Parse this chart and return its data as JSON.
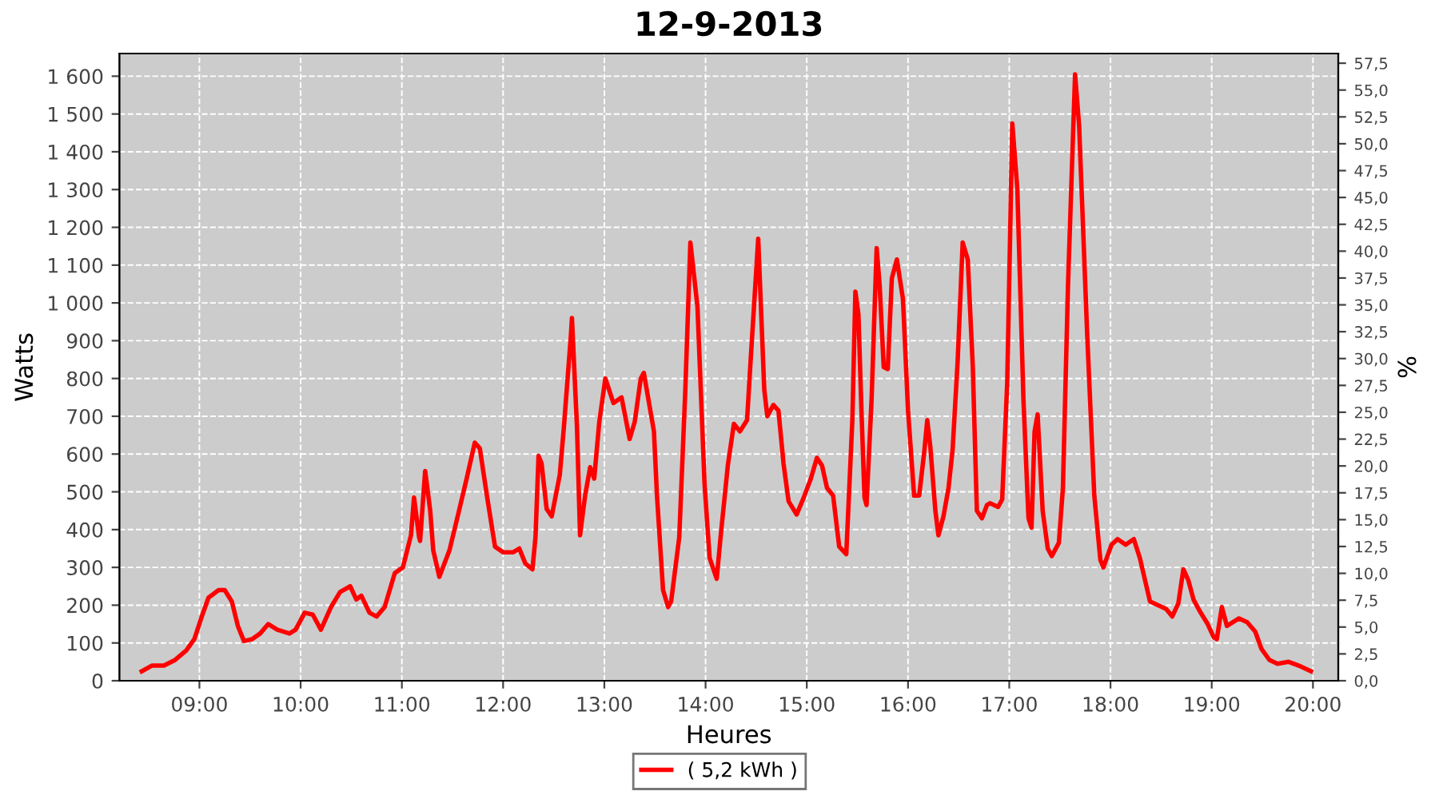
{
  "chart_data": {
    "type": "line",
    "title": "12-9-2013",
    "xlabel": "Heures",
    "ylabel": "Watts",
    "y2label": "%",
    "x": [
      8.43,
      8.53,
      8.65,
      8.76,
      8.87,
      8.95,
      9.03,
      9.09,
      9.19,
      9.25,
      9.32,
      9.38,
      9.44,
      9.52,
      9.6,
      9.68,
      9.77,
      9.89,
      9.95,
      10.04,
      10.12,
      10.2,
      10.3,
      10.39,
      10.49,
      10.55,
      10.6,
      10.68,
      10.75,
      10.83,
      10.93,
      11.01,
      11.09,
      11.12,
      11.17,
      11.18,
      11.23,
      11.28,
      11.31,
      11.37,
      11.47,
      11.56,
      11.64,
      11.72,
      11.77,
      11.84,
      11.92,
      12.0,
      12.1,
      12.16,
      12.22,
      12.29,
      12.32,
      12.35,
      12.38,
      12.43,
      12.48,
      12.56,
      12.6,
      12.67,
      12.68,
      12.73,
      12.76,
      12.81,
      12.86,
      12.9,
      12.95,
      13.01,
      13.09,
      13.17,
      13.25,
      13.3,
      13.36,
      13.39,
      13.49,
      13.52,
      13.58,
      13.63,
      13.66,
      13.74,
      13.8,
      13.85,
      13.92,
      13.99,
      14.04,
      14.11,
      14.15,
      14.22,
      14.28,
      14.34,
      14.41,
      14.44,
      14.52,
      14.58,
      14.61,
      14.67,
      14.72,
      14.77,
      14.82,
      14.9,
      14.97,
      15.04,
      15.1,
      15.15,
      15.2,
      15.26,
      15.32,
      15.39,
      15.45,
      15.48,
      15.51,
      15.54,
      15.57,
      15.59,
      15.64,
      15.69,
      15.72,
      15.76,
      15.8,
      15.84,
      15.89,
      15.95,
      16.0,
      16.06,
      16.11,
      16.16,
      16.19,
      16.22,
      16.27,
      16.3,
      16.35,
      16.4,
      16.44,
      16.49,
      16.54,
      16.59,
      16.64,
      16.68,
      16.73,
      16.78,
      16.81,
      16.89,
      16.93,
      16.98,
      17.03,
      17.08,
      17.14,
      17.19,
      17.22,
      17.25,
      17.28,
      17.33,
      17.38,
      17.42,
      17.49,
      17.53,
      17.58,
      17.65,
      17.69,
      17.77,
      17.84,
      17.9,
      17.93,
      18.01,
      18.07,
      18.15,
      18.23,
      18.29,
      18.39,
      18.47,
      18.55,
      18.61,
      18.67,
      18.72,
      18.77,
      18.82,
      18.88,
      18.96,
      19.02,
      19.05,
      19.1,
      19.15,
      19.21,
      19.27,
      19.35,
      19.43,
      19.49,
      19.57,
      19.65,
      19.76,
      19.86,
      19.98
    ],
    "series": [
      {
        "name": "( 5,2 kWh )",
        "color": "#ff0000",
        "values": [
          25,
          40,
          40,
          55,
          80,
          110,
          175,
          220,
          240,
          240,
          210,
          145,
          105,
          110,
          125,
          150,
          135,
          125,
          135,
          180,
          175,
          135,
          195,
          235,
          250,
          215,
          225,
          180,
          170,
          195,
          285,
          300,
          385,
          485,
          380,
          370,
          555,
          450,
          345,
          275,
          345,
          445,
          535,
          630,
          615,
          490,
          355,
          340,
          340,
          350,
          310,
          295,
          380,
          595,
          575,
          455,
          435,
          545,
          670,
          915,
          960,
          670,
          385,
          490,
          565,
          535,
          685,
          800,
          735,
          750,
          640,
          685,
          800,
          815,
          660,
          490,
          240,
          195,
          210,
          380,
          770,
          1160,
          990,
          520,
          325,
          270,
          385,
          570,
          680,
          660,
          690,
          825,
          1170,
          770,
          700,
          730,
          715,
          575,
          475,
          440,
          485,
          535,
          590,
          570,
          510,
          490,
          355,
          335,
          690,
          1030,
          970,
          715,
          485,
          465,
          745,
          1145,
          1045,
          830,
          825,
          1065,
          1115,
          1010,
          715,
          490,
          490,
          605,
          690,
          620,
          450,
          385,
          435,
          510,
          610,
          845,
          1160,
          1115,
          830,
          450,
          430,
          465,
          470,
          460,
          480,
          790,
          1475,
          1300,
          745,
          430,
          405,
          660,
          705,
          450,
          350,
          330,
          365,
          510,
          1045,
          1605,
          1470,
          915,
          490,
          320,
          300,
          360,
          375,
          360,
          375,
          325,
          210,
          200,
          190,
          170,
          205,
          295,
          265,
          215,
          185,
          150,
          115,
          110,
          195,
          145,
          155,
          165,
          155,
          130,
          85,
          55,
          45,
          50,
          40,
          25
        ]
      }
    ],
    "xlim": [
      8.21,
      20.25
    ],
    "xticks": [
      {
        "value": 9,
        "label": "09:00"
      },
      {
        "value": 10,
        "label": "10:00"
      },
      {
        "value": 11,
        "label": "11:00"
      },
      {
        "value": 12,
        "label": "12:00"
      },
      {
        "value": 13,
        "label": "13:00"
      },
      {
        "value": 14,
        "label": "14:00"
      },
      {
        "value": 15,
        "label": "15:00"
      },
      {
        "value": 16,
        "label": "16:00"
      },
      {
        "value": 17,
        "label": "17:00"
      },
      {
        "value": 18,
        "label": "18:00"
      },
      {
        "value": 19,
        "label": "19:00"
      },
      {
        "value": 20,
        "label": "20:00"
      }
    ],
    "ylim": [
      0,
      1660
    ],
    "yticks": [
      0,
      100,
      200,
      300,
      400,
      500,
      600,
      700,
      800,
      900,
      {
        "value": 1000,
        "label": "1 000"
      },
      {
        "value": 1100,
        "label": "1 100"
      },
      {
        "value": 1200,
        "label": "1 200"
      },
      {
        "value": 1300,
        "label": "1 300"
      },
      {
        "value": 1400,
        "label": "1 400"
      },
      {
        "value": 1500,
        "label": "1 500"
      },
      {
        "value": 1600,
        "label": "1 600"
      }
    ],
    "y2lim": [
      0,
      58.4
    ],
    "y2ticks": [
      {
        "value": 0,
        "label": "0,0"
      },
      {
        "value": 2.5,
        "label": "2,5"
      },
      {
        "value": 5,
        "label": "5,0"
      },
      {
        "value": 7.5,
        "label": "7,5"
      },
      {
        "value": 10,
        "label": "10,0"
      },
      {
        "value": 12.5,
        "label": "12,5"
      },
      {
        "value": 15,
        "label": "15,0"
      },
      {
        "value": 17.5,
        "label": "17,5"
      },
      {
        "value": 20,
        "label": "20,0"
      },
      {
        "value": 22.5,
        "label": "22,5"
      },
      {
        "value": 25,
        "label": "25,0"
      },
      {
        "value": 27.5,
        "label": "27,5"
      },
      {
        "value": 30,
        "label": "30,0"
      },
      {
        "value": 32.5,
        "label": "32,5"
      },
      {
        "value": 35,
        "label": "35,0"
      },
      {
        "value": 37.5,
        "label": "37,5"
      },
      {
        "value": 40,
        "label": "40,0"
      },
      {
        "value": 42.5,
        "label": "42,5"
      },
      {
        "value": 45,
        "label": "45,0"
      },
      {
        "value": 47.5,
        "label": "47,5"
      },
      {
        "value": 50,
        "label": "50,0"
      },
      {
        "value": 52.5,
        "label": "52,5"
      },
      {
        "value": 55,
        "label": "55,0"
      },
      {
        "value": 57.5,
        "label": "57,5"
      }
    ],
    "grid": true,
    "legend": "bottom",
    "marker": "none",
    "line_style": "solid"
  }
}
